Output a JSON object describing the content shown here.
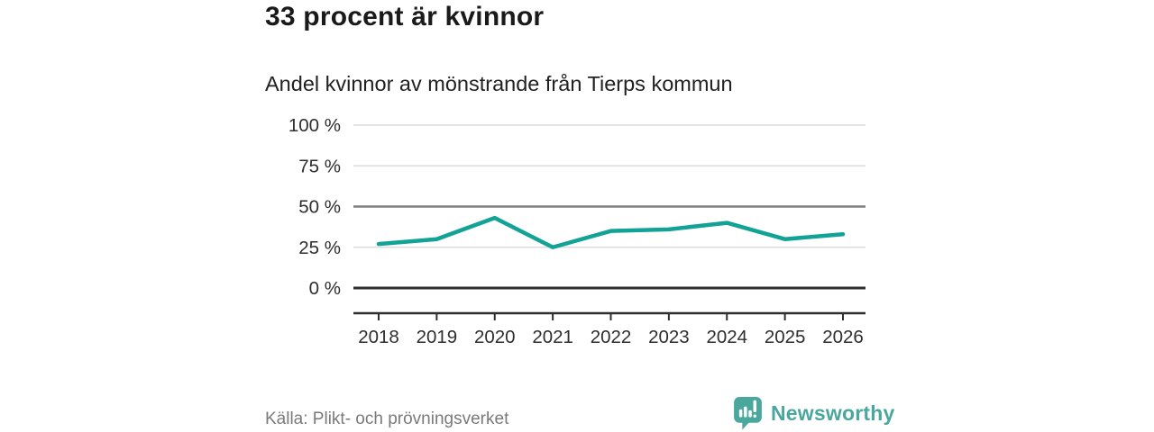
{
  "header": {
    "title": "33 procent är kvinnor",
    "subtitle": "Andel kvinnor av mönstrande från Tierps kommun"
  },
  "chart_data": {
    "type": "line",
    "title": "33 procent är kvinnor",
    "subtitle": "Andel kvinnor av mönstrande från Tierps kommun",
    "categories": [
      "2018",
      "2019",
      "2020",
      "2021",
      "2022",
      "2023",
      "2024",
      "2025",
      "2026"
    ],
    "series": [
      {
        "name": "Andel kvinnor av mönstrande",
        "values": [
          27,
          30,
          43,
          25,
          35,
          36,
          40,
          30,
          33
        ]
      }
    ],
    "xlabel": "",
    "ylabel": "",
    "ylim": [
      0,
      100
    ],
    "yticks": [
      0,
      25,
      50,
      75,
      100
    ],
    "ytick_labels": [
      "0 %",
      "25 %",
      "50 %",
      "75 %",
      "100 %"
    ],
    "unit": "%",
    "grid": true,
    "legend_position": "none",
    "line_color": "#12A396"
  },
  "footer": {
    "source": "Källa: Plikt- och prövningsverket",
    "brand": {
      "name": "Newsworthy",
      "color": "#4AA79E",
      "icon": "bar-chart-speech-bubble-icon"
    }
  }
}
